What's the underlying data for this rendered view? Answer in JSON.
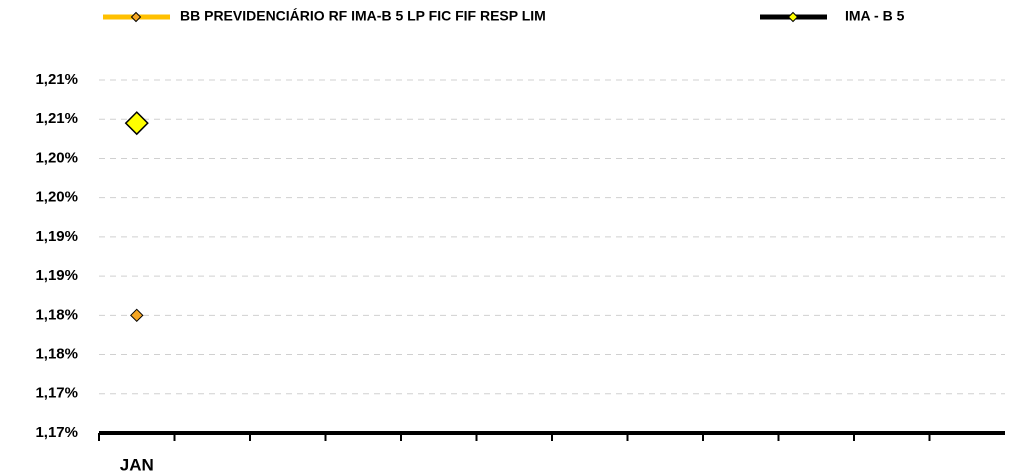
{
  "chart_data": {
    "type": "line",
    "categories": [
      "JAN",
      null,
      null,
      null,
      null,
      null,
      null,
      null,
      null,
      null,
      null,
      null
    ],
    "series": [
      {
        "name": "BB PREVIDENCIÁRIO RF IMA-B 5 LP FIC FIF RESP LIM",
        "color": "#ffc000",
        "marker_color": "#f5a623",
        "values": [
          1.18,
          null,
          null,
          null,
          null,
          null,
          null,
          null,
          null,
          null,
          null,
          null
        ]
      },
      {
        "name": "IMA - B 5",
        "color": "#000000",
        "marker_color": "#ffff00",
        "values": [
          1.2045,
          null,
          null,
          null,
          null,
          null,
          null,
          null,
          null,
          null,
          null,
          null
        ]
      }
    ],
    "ylim": [
      1.165,
      1.21
    ],
    "yticks": [
      {
        "value": 1.165,
        "label": "1,17%"
      },
      {
        "value": 1.17,
        "label": "1,17%"
      },
      {
        "value": 1.175,
        "label": "1,18%"
      },
      {
        "value": 1.18,
        "label": "1,18%"
      },
      {
        "value": 1.185,
        "label": "1,19%"
      },
      {
        "value": 1.19,
        "label": "1,19%"
      },
      {
        "value": 1.195,
        "label": "1,20%"
      },
      {
        "value": 1.2,
        "label": "1,20%"
      },
      {
        "value": 1.205,
        "label": "1,21%"
      },
      {
        "value": 1.21,
        "label": "1,21%"
      }
    ],
    "grid": true,
    "legend": "top"
  }
}
